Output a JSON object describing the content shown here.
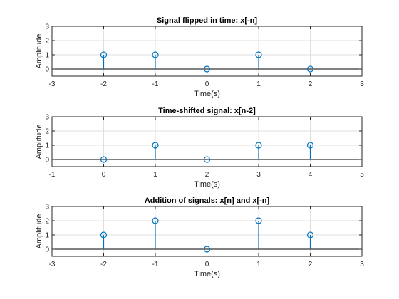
{
  "chart_data": [
    {
      "type": "stem",
      "title": "Signal flipped in time: x[-n]",
      "xlabel": "Time(s)",
      "ylabel": "Amplitude",
      "xlim": [
        -3,
        3
      ],
      "ylim": [
        -0.5,
        3
      ],
      "xticks": [
        "-3",
        "-2",
        "-1",
        "0",
        "1",
        "2",
        "3"
      ],
      "yticks": [
        "0",
        "1",
        "2",
        "3"
      ],
      "x": [
        -2,
        -1,
        0,
        1,
        2
      ],
      "y": [
        1,
        1,
        0,
        1,
        0
      ],
      "grid": true,
      "color": "#0072bd"
    },
    {
      "type": "stem",
      "title": "Time-shifted signal: x[n-2]",
      "xlabel": "Time(s)",
      "ylabel": "Amplitude",
      "xlim": [
        -1,
        5
      ],
      "ylim": [
        -0.5,
        3
      ],
      "xticks": [
        "-1",
        "0",
        "1",
        "2",
        "3",
        "4",
        "5"
      ],
      "yticks": [
        "0",
        "1",
        "2",
        "3"
      ],
      "x": [
        0,
        1,
        2,
        3,
        4
      ],
      "y": [
        0,
        1,
        0,
        1,
        1
      ],
      "grid": true,
      "color": "#0072bd"
    },
    {
      "type": "stem",
      "title": "Addition of signals: x[n] and x[-n]",
      "xlabel": "Time(s)",
      "ylabel": "Amplitude",
      "xlim": [
        -3,
        3
      ],
      "ylim": [
        -0.5,
        3
      ],
      "xticks": [
        "-3",
        "-2",
        "-1",
        "0",
        "1",
        "2",
        "3"
      ],
      "yticks": [
        "0",
        "1",
        "2",
        "3"
      ],
      "x": [
        -2,
        -1,
        0,
        1,
        2
      ],
      "y": [
        1,
        2,
        0,
        2,
        1
      ],
      "grid": true,
      "color": "#0072bd"
    }
  ]
}
